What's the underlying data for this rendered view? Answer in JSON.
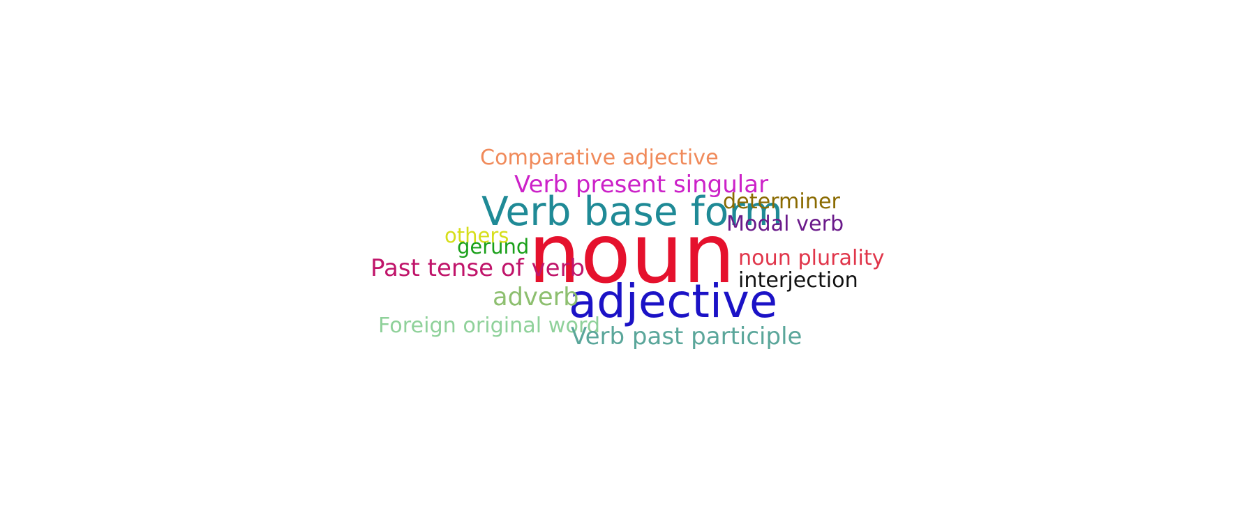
{
  "chart_data": {
    "type": "wordcloud",
    "words": [
      {
        "text": "noun",
        "weight": 100,
        "color": "#e5112d"
      },
      {
        "text": "adjective",
        "weight": 52,
        "color": "#1b12c6"
      },
      {
        "text": "Verb base form",
        "weight": 45,
        "color": "#1f8a96"
      },
      {
        "text": "Verb present singular",
        "weight": 27,
        "color": "#cc22c8"
      },
      {
        "text": "Comparative adjective",
        "weight": 24,
        "color": "#f08a5a"
      },
      {
        "text": "Past tense of verb",
        "weight": 27,
        "color": "#c0146a"
      },
      {
        "text": "adverb",
        "weight": 28,
        "color": "#8dbf6f"
      },
      {
        "text": "Foreign original word",
        "weight": 24,
        "color": "#8fd19a"
      },
      {
        "text": "Verb past participle",
        "weight": 27,
        "color": "#5aa69a"
      },
      {
        "text": "determiner",
        "weight": 24,
        "color": "#8a6a00"
      },
      {
        "text": "Modal verb",
        "weight": 24,
        "color": "#6a1a8a"
      },
      {
        "text": "noun plurality",
        "weight": 24,
        "color": "#e0354a"
      },
      {
        "text": "interjection",
        "weight": 24,
        "color": "#111111"
      },
      {
        "text": "others",
        "weight": 23,
        "color": "#d6de1a"
      },
      {
        "text": "gerund",
        "weight": 23,
        "color": "#1aa01a"
      }
    ]
  }
}
